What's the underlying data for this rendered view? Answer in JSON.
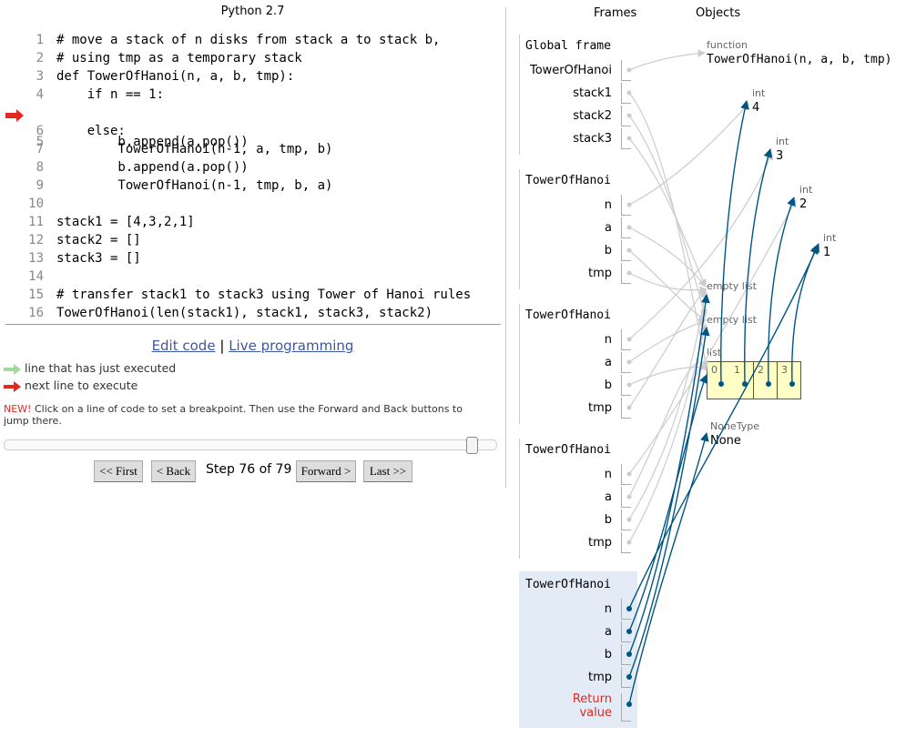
{
  "code_pane": {
    "header": "Python 2.7",
    "lines": [
      {
        "no": "1",
        "text": "# move a stack of n disks from stack a to stack b,"
      },
      {
        "no": "2",
        "text": "# using tmp as a temporary stack"
      },
      {
        "no": "3",
        "text": "def TowerOfHanoi(n, a, b, tmp):"
      },
      {
        "no": "4",
        "text": "    if n == 1:"
      },
      {
        "no": "5",
        "text": "        b.append(a.pop())"
      },
      {
        "no": "6",
        "text": "    else:"
      },
      {
        "no": "7",
        "text": "        TowerOfHanoi(n-1, a, tmp, b)"
      },
      {
        "no": "8",
        "text": "        b.append(a.pop())"
      },
      {
        "no": "9",
        "text": "        TowerOfHanoi(n-1, tmp, b, a)"
      },
      {
        "no": "10",
        "text": ""
      },
      {
        "no": "11",
        "text": "stack1 = [4,3,2,1]"
      },
      {
        "no": "12",
        "text": "stack2 = []"
      },
      {
        "no": "13",
        "text": "stack3 = []"
      },
      {
        "no": "14",
        "text": ""
      },
      {
        "no": "15",
        "text": "# transfer stack1 to stack3 using Tower of Hanoi rules"
      },
      {
        "no": "16",
        "text": "TowerOfHanoi(len(stack1), stack1, stack3, stack2)"
      }
    ],
    "next_line": "5",
    "edit_code": "Edit code",
    "separator": "|",
    "live_programming": "Live programming",
    "legend_executed": "line that has just executed",
    "legend_next": "next line to execute",
    "new_label": "NEW!",
    "new_note": " Click on a line of code to set a breakpoint. Then use the Forward and Back buttons to jump there.",
    "slider_progress": 0.95,
    "btn_first": "<< First",
    "btn_back": "< Back",
    "step_text": "Step 76 of 79",
    "btn_forward": "Forward >",
    "btn_last": "Last >>"
  },
  "viz": {
    "frames_header": "Frames",
    "objects_header": "Objects",
    "global_frame": {
      "title": "Global frame",
      "vars": [
        "TowerOfHanoi",
        "stack1",
        "stack2",
        "stack3"
      ]
    },
    "call_frames": [
      {
        "title": "TowerOfHanoi",
        "vars": [
          "n",
          "a",
          "b",
          "tmp"
        ]
      },
      {
        "title": "TowerOfHanoi",
        "vars": [
          "n",
          "a",
          "b",
          "tmp"
        ]
      },
      {
        "title": "TowerOfHanoi",
        "vars": [
          "n",
          "a",
          "b",
          "tmp"
        ]
      },
      {
        "title": "TowerOfHanoi",
        "vars": [
          "n",
          "a",
          "b",
          "tmp"
        ],
        "return_line1": "Return",
        "return_line2": "value"
      }
    ],
    "objects": {
      "function_type": "function",
      "function_sig": "TowerOfHanoi(n, a, b, tmp)",
      "ints": [
        {
          "type": "int",
          "value": "4"
        },
        {
          "type": "int",
          "value": "3"
        },
        {
          "type": "int",
          "value": "2"
        },
        {
          "type": "int",
          "value": "1"
        }
      ],
      "empty_list_1": "empty list",
      "empty_list_2": "empty list",
      "list_type": "list",
      "list_indices": [
        "0",
        "1",
        "2",
        "3"
      ],
      "none_type": "NoneType",
      "none_value": "None"
    },
    "colors": {
      "arrow_active": "#005583",
      "arrow_inactive": "#cccccc",
      "active_frame_bg": "#e2ebf6",
      "list_bg": "#ffffc6",
      "return_label": "#e3281d",
      "executed_arrow": "#a0d8a0",
      "next_arrow": "#e3281d",
      "link": "#3d58a2"
    }
  }
}
